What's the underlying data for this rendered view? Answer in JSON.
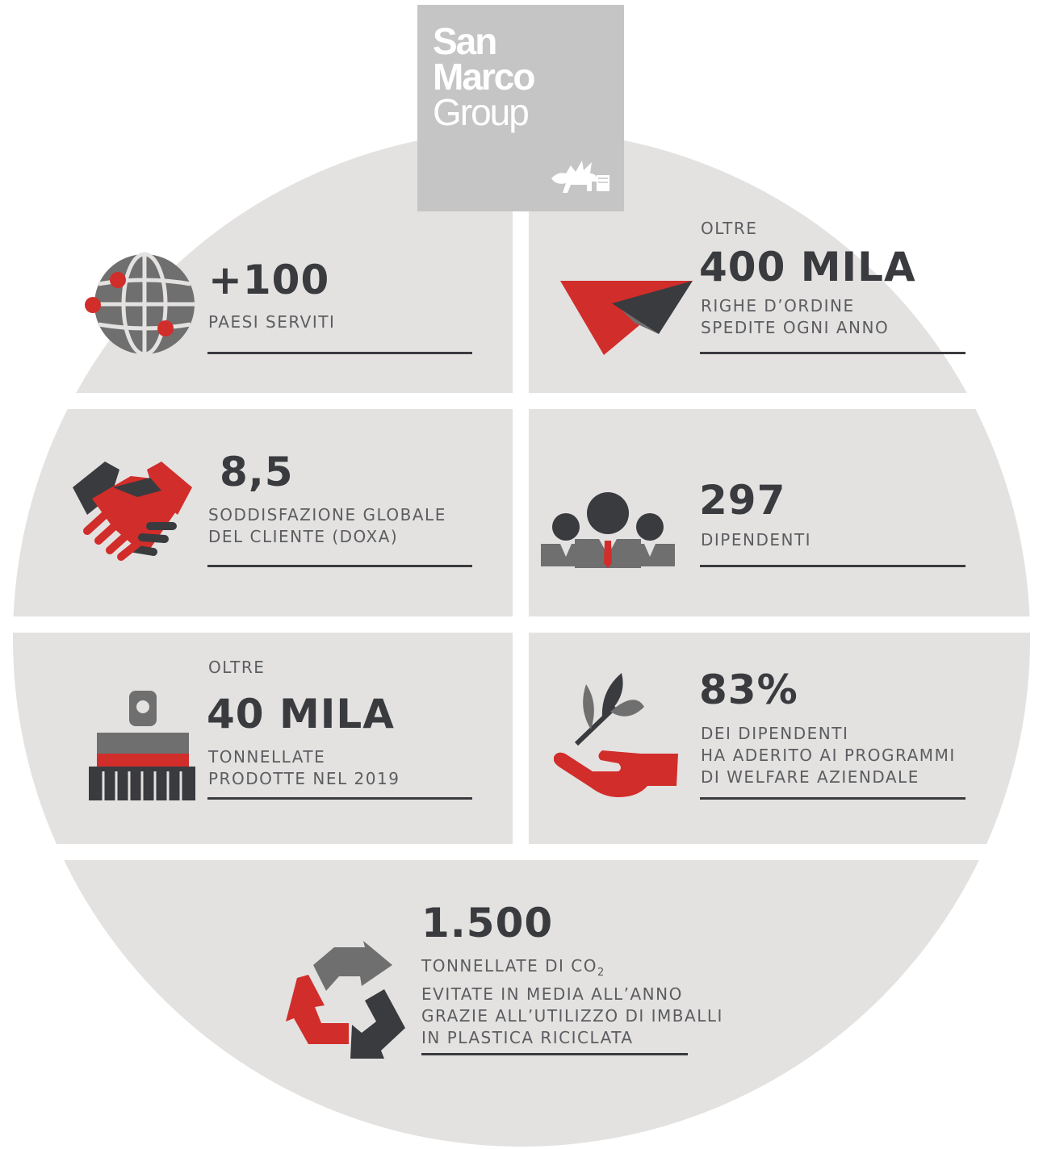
{
  "logo": {
    "line1": "San",
    "line2": "Marco",
    "line3": "Group"
  },
  "colors": {
    "background_disc": "#e3e2e1",
    "logo_box": "#c6c5c5",
    "accent_red": "#d12d2a",
    "dark_gray": "#3a3b3f",
    "mid_gray": "#6f6f70",
    "text": "#5c5d60"
  },
  "stats": {
    "countries": {
      "value": "+100",
      "label": [
        "PAESI SERVITI"
      ],
      "icon": "globe-icon"
    },
    "orders": {
      "prefix": "OLTRE",
      "value": "400 MILA",
      "label": [
        "RIGHE D’ORDINE",
        "SPEDITE OGNI ANNO"
      ],
      "icon": "paper-plane-icon"
    },
    "satisfaction": {
      "value": "8,5",
      "label": [
        "SODDISFAZIONE GLOBALE",
        "DEL CLIENTE (DOXA)"
      ],
      "icon": "handshake-icon"
    },
    "employees": {
      "value": "297",
      "label": [
        "DIPENDENTI"
      ],
      "icon": "people-icon"
    },
    "tons": {
      "prefix": "OLTRE",
      "value": "40 MILA",
      "label": [
        "TONNELLATE",
        "PRODOTTE NEL 2019"
      ],
      "icon": "paint-brush-icon"
    },
    "welfare": {
      "value": "83%",
      "label": [
        "DEI DIPENDENTI",
        "HA ADERITO AI PROGRAMMI",
        "DI WELFARE AZIENDALE"
      ],
      "icon": "plant-hand-icon"
    },
    "co2": {
      "value": "1.500",
      "label_l1_pre": "TONNELLATE DI CO",
      "label_l1_sub": "2",
      "label": [
        "EVITATE IN MEDIA ALL’ANNO",
        "GRAZIE ALL’UTILIZZO DI IMBALLI",
        "IN PLASTICA RICICLATA"
      ],
      "icon": "recycle-icon"
    }
  }
}
